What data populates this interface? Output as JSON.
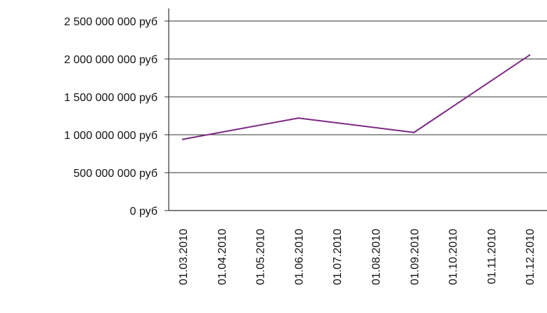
{
  "chart_data": {
    "type": "line",
    "title": "",
    "xlabel": "",
    "ylabel": "",
    "x": [
      "01.03.2010",
      "01.04.2010",
      "01.05.2010",
      "01.06.2010",
      "01.07.2010",
      "01.08.2010",
      "01.09.2010",
      "01.10.2010",
      "01.11.2010",
      "01.12.2010"
    ],
    "ylim": [
      0,
      2500000000
    ],
    "yticks": [
      0,
      500000000,
      1000000000,
      1500000000,
      2000000000,
      2500000000
    ],
    "ytick_labels": [
      "0 руб",
      "500 000 000 руб",
      "1 000 000 000 руб",
      "1 500 000 000 руб",
      "2 000 000 000 руб",
      "2 500 000 000 руб"
    ],
    "grid": true,
    "legend": "none",
    "series": [
      {
        "color": "#7b2a83",
        "points": [
          {
            "x": "01.03.2010",
            "y": 940000000
          },
          {
            "x": "01.06.2010",
            "y": 1220000000
          },
          {
            "x": "01.09.2010",
            "y": 1030000000
          },
          {
            "x": "01.12.2010",
            "y": 2050000000
          }
        ]
      }
    ]
  }
}
